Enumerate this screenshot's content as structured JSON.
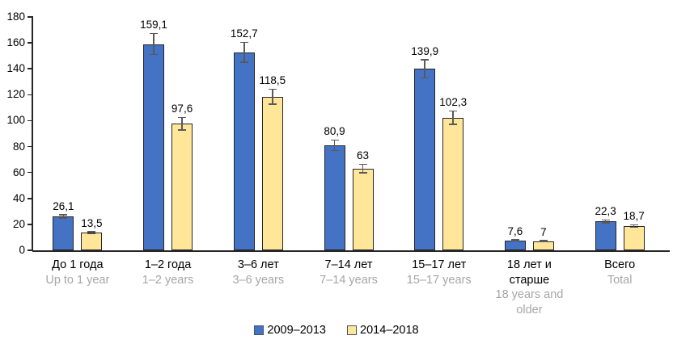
{
  "chart_data": {
    "type": "bar",
    "title": "",
    "xlabel": "",
    "ylabel": "",
    "ylim": [
      0,
      180
    ],
    "yticks": [
      0,
      20,
      40,
      60,
      80,
      100,
      120,
      140,
      160,
      180
    ],
    "grid": false,
    "legend_position": "bottom",
    "decimal_separator": ",",
    "categories": [
      {
        "label_ru": "До 1 года",
        "label_en": "Up to 1 year"
      },
      {
        "label_ru": "1–2 года",
        "label_en": "1–2 years"
      },
      {
        "label_ru": "3–6 лет",
        "label_en": "3–6 years"
      },
      {
        "label_ru": "7–14 лет",
        "label_en": "7–14 years"
      },
      {
        "label_ru": "15–17 лет",
        "label_en": "15–17 years"
      },
      {
        "label_ru": "18 лет и старше",
        "label_en": "18 years and older"
      },
      {
        "label_ru": "Всего",
        "label_en": "Total"
      }
    ],
    "series": [
      {
        "name": "2009–2013",
        "color": "#4472C4",
        "border_color": "#262626",
        "values": [
          26.1,
          159.1,
          152.7,
          80.9,
          139.9,
          7.6,
          22.3
        ],
        "value_labels": [
          "26,1",
          "159,1",
          "152,7",
          "80,9",
          "139,9",
          "7,6",
          "22,3"
        ],
        "error_values": [
          1.3,
          8.0,
          7.6,
          4.0,
          7.0,
          0.4,
          1.1
        ]
      },
      {
        "name": "2014–2018",
        "color": "#FFE699",
        "border_color": "#262626",
        "values": [
          13.5,
          97.6,
          118.5,
          63,
          102.3,
          7,
          18.7
        ],
        "value_labels": [
          "13,5",
          "97,6",
          "118,5",
          "63",
          "102,3",
          "7",
          "18,7"
        ],
        "error_values": [
          0.7,
          4.9,
          5.9,
          3.2,
          5.1,
          0.4,
          0.9
        ]
      }
    ]
  },
  "styles": {
    "background": "#FFFFFF",
    "axis_color": "#262626",
    "error_bar_color": "#595959",
    "value_label_color": "#000000",
    "category_ru_color": "#000000",
    "category_en_color": "#A6A6A6"
  }
}
